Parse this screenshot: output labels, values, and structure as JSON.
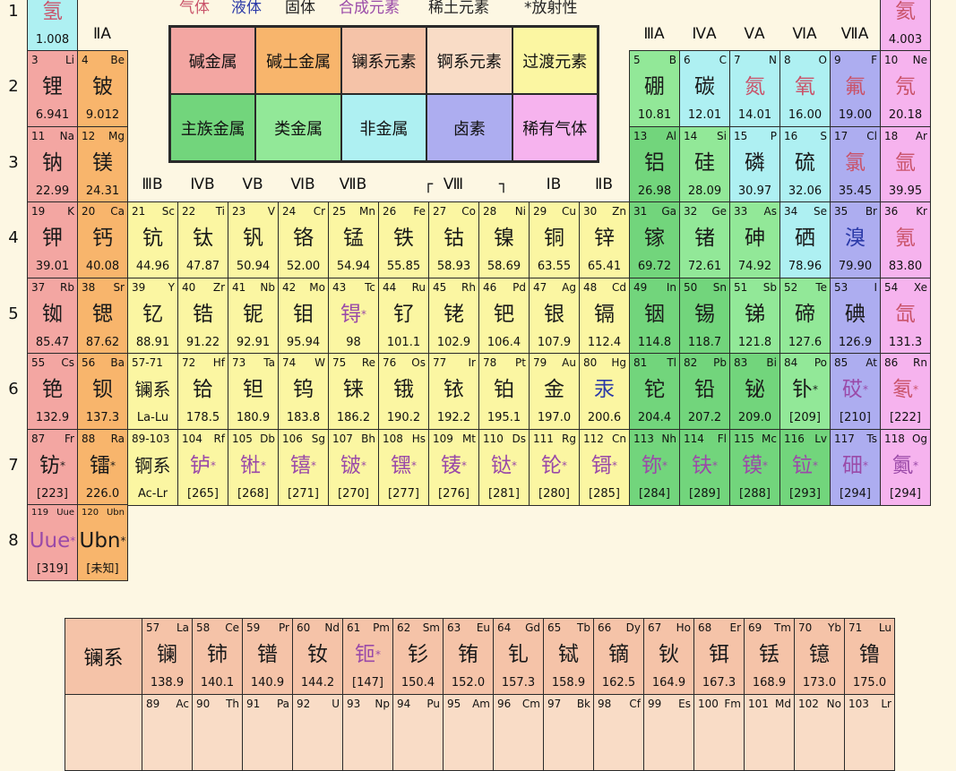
{
  "state_legend": [
    {
      "label": "气体",
      "color": "#c9536a"
    },
    {
      "label": "液体",
      "color": "#2b3aa8"
    },
    {
      "label": "固体",
      "color": "#222222"
    },
    {
      "label": "合成元素",
      "color": "#9a4aa8"
    },
    {
      "label": "稀土元素",
      "color": "#222222"
    },
    {
      "label": "*放射性",
      "color": "#222222"
    }
  ],
  "category_legend": [
    {
      "label": "碱金属",
      "cat": "a"
    },
    {
      "label": "碱土金属",
      "cat": "e"
    },
    {
      "label": "镧系元素",
      "cat": "l"
    },
    {
      "label": "锕系元素",
      "cat": "c"
    },
    {
      "label": "过渡元素",
      "cat": "t"
    },
    {
      "label": "主族金属",
      "cat": "m"
    },
    {
      "label": "类金属",
      "cat": "s"
    },
    {
      "label": "非金属",
      "cat": "n"
    },
    {
      "label": "卤素",
      "cat": "h"
    },
    {
      "label": "稀有气体",
      "cat": "g"
    }
  ],
  "colors": {
    "a": "#f3a6a2",
    "e": "#f8b56c",
    "l": "#f5c3a8",
    "c": "#f9dcc6",
    "t": "#fbf6a2",
    "m": "#72d57c",
    "s": "#92e898",
    "n": "#aef0f2",
    "h": "#adadf0",
    "g": "#f6b3ee"
  },
  "state_colors": {
    "g": "#c9536a",
    "l": "#2b3aa8",
    "s": "#1a1a1a",
    "x": "#9a4aa8"
  },
  "periods": [
    "1",
    "2",
    "3",
    "4",
    "5",
    "6",
    "7",
    "8"
  ],
  "group_headers": {
    "IIA": "ⅡA",
    "IIIA": "ⅢA",
    "IVA": "ⅣA",
    "VA": "ⅤA",
    "VIA": "ⅥA",
    "VIIA": "ⅦA",
    "IIIB": "ⅢB",
    "IVB": "ⅣB",
    "VB": "ⅤB",
    "VIB": "ⅥB",
    "VIIB": "ⅦB",
    "VIII": "Ⅷ",
    "VIII_left": "┌",
    "VIII_right": "┐",
    "IB": "ⅠB",
    "IIB": "ⅡB"
  },
  "elements": [
    {
      "z": 1,
      "num": "",
      "sym": "",
      "name": "氢",
      "mass": "1.008",
      "cat": "n",
      "state": "g"
    },
    {
      "z": 2,
      "num": "",
      "sym": "",
      "name": "氦",
      "mass": "4.003",
      "cat": "g",
      "state": "g"
    },
    {
      "z": 3,
      "num": "3",
      "sym": "Li",
      "name": "锂",
      "mass": "6.941",
      "cat": "a",
      "state": "s"
    },
    {
      "z": 4,
      "num": "4",
      "sym": "Be",
      "name": "铍",
      "mass": "9.012",
      "cat": "e",
      "state": "s"
    },
    {
      "z": 5,
      "num": "5",
      "sym": "B",
      "name": "硼",
      "mass": "10.81",
      "cat": "s",
      "state": "s"
    },
    {
      "z": 6,
      "num": "6",
      "sym": "C",
      "name": "碳",
      "mass": "12.01",
      "cat": "n",
      "state": "s"
    },
    {
      "z": 7,
      "num": "7",
      "sym": "N",
      "name": "氮",
      "mass": "14.01",
      "cat": "n",
      "state": "g"
    },
    {
      "z": 8,
      "num": "8",
      "sym": "O",
      "name": "氧",
      "mass": "16.00",
      "cat": "n",
      "state": "g"
    },
    {
      "z": 9,
      "num": "9",
      "sym": "F",
      "name": "氟",
      "mass": "19.00",
      "cat": "h",
      "state": "g"
    },
    {
      "z": 10,
      "num": "10",
      "sym": "Ne",
      "name": "氖",
      "mass": "20.18",
      "cat": "g",
      "state": "g"
    },
    {
      "z": 11,
      "num": "11",
      "sym": "Na",
      "name": "钠",
      "mass": "22.99",
      "cat": "a",
      "state": "s"
    },
    {
      "z": 12,
      "num": "12",
      "sym": "Mg",
      "name": "镁",
      "mass": "24.31",
      "cat": "e",
      "state": "s"
    },
    {
      "z": 13,
      "num": "13",
      "sym": "Al",
      "name": "铝",
      "mass": "26.98",
      "cat": "m",
      "state": "s"
    },
    {
      "z": 14,
      "num": "14",
      "sym": "Si",
      "name": "硅",
      "mass": "28.09",
      "cat": "s",
      "state": "s"
    },
    {
      "z": 15,
      "num": "15",
      "sym": "P",
      "name": "磷",
      "mass": "30.97",
      "cat": "n",
      "state": "s"
    },
    {
      "z": 16,
      "num": "16",
      "sym": "S",
      "name": "硫",
      "mass": "32.06",
      "cat": "n",
      "state": "s"
    },
    {
      "z": 17,
      "num": "17",
      "sym": "Cl",
      "name": "氯",
      "mass": "35.45",
      "cat": "h",
      "state": "g"
    },
    {
      "z": 18,
      "num": "18",
      "sym": "Ar",
      "name": "氩",
      "mass": "39.95",
      "cat": "g",
      "state": "g"
    },
    {
      "z": 19,
      "num": "19",
      "sym": "K",
      "name": "钾",
      "mass": "39.01",
      "cat": "a",
      "state": "s"
    },
    {
      "z": 20,
      "num": "20",
      "sym": "Ca",
      "name": "钙",
      "mass": "40.08",
      "cat": "e",
      "state": "s"
    },
    {
      "z": 21,
      "num": "21",
      "sym": "Sc",
      "name": "钪",
      "mass": "44.96",
      "cat": "t",
      "state": "s"
    },
    {
      "z": 22,
      "num": "22",
      "sym": "Ti",
      "name": "钛",
      "mass": "47.87",
      "cat": "t",
      "state": "s"
    },
    {
      "z": 23,
      "num": "23",
      "sym": "V",
      "name": "钒",
      "mass": "50.94",
      "cat": "t",
      "state": "s"
    },
    {
      "z": 24,
      "num": "24",
      "sym": "Cr",
      "name": "铬",
      "mass": "52.00",
      "cat": "t",
      "state": "s"
    },
    {
      "z": 25,
      "num": "25",
      "sym": "Mn",
      "name": "锰",
      "mass": "54.94",
      "cat": "t",
      "state": "s"
    },
    {
      "z": 26,
      "num": "26",
      "sym": "Fe",
      "name": "铁",
      "mass": "55.85",
      "cat": "t",
      "state": "s"
    },
    {
      "z": 27,
      "num": "27",
      "sym": "Co",
      "name": "钴",
      "mass": "58.93",
      "cat": "t",
      "state": "s"
    },
    {
      "z": 28,
      "num": "28",
      "sym": "Ni",
      "name": "镍",
      "mass": "58.69",
      "cat": "t",
      "state": "s"
    },
    {
      "z": 29,
      "num": "29",
      "sym": "Cu",
      "name": "铜",
      "mass": "63.55",
      "cat": "t",
      "state": "s"
    },
    {
      "z": 30,
      "num": "30",
      "sym": "Zn",
      "name": "锌",
      "mass": "65.41",
      "cat": "t",
      "state": "s"
    },
    {
      "z": 31,
      "num": "31",
      "sym": "Ga",
      "name": "镓",
      "mass": "69.72",
      "cat": "m",
      "state": "s"
    },
    {
      "z": 32,
      "num": "32",
      "sym": "Ge",
      "name": "锗",
      "mass": "72.61",
      "cat": "s",
      "state": "s"
    },
    {
      "z": 33,
      "num": "33",
      "sym": "As",
      "name": "砷",
      "mass": "74.92",
      "cat": "s",
      "state": "s"
    },
    {
      "z": 34,
      "num": "34",
      "sym": "Se",
      "name": "硒",
      "mass": "78.96",
      "cat": "n",
      "state": "s"
    },
    {
      "z": 35,
      "num": "35",
      "sym": "Br",
      "name": "溴",
      "mass": "79.90",
      "cat": "h",
      "state": "l"
    },
    {
      "z": 36,
      "num": "36",
      "sym": "Kr",
      "name": "氪",
      "mass": "83.80",
      "cat": "g",
      "state": "g"
    },
    {
      "z": 37,
      "num": "37",
      "sym": "Rb",
      "name": "铷",
      "mass": "85.47",
      "cat": "a",
      "state": "s"
    },
    {
      "z": 38,
      "num": "38",
      "sym": "Sr",
      "name": "锶",
      "mass": "87.62",
      "cat": "e",
      "state": "s"
    },
    {
      "z": 39,
      "num": "39",
      "sym": "Y",
      "name": "钇",
      "mass": "88.91",
      "cat": "t",
      "state": "s"
    },
    {
      "z": 40,
      "num": "40",
      "sym": "Zr",
      "name": "锆",
      "mass": "91.22",
      "cat": "t",
      "state": "s"
    },
    {
      "z": 41,
      "num": "41",
      "sym": "Nb",
      "name": "铌",
      "mass": "92.91",
      "cat": "t",
      "state": "s"
    },
    {
      "z": 42,
      "num": "42",
      "sym": "Mo",
      "name": "钼",
      "mass": "95.94",
      "cat": "t",
      "state": "s"
    },
    {
      "z": 43,
      "num": "43",
      "sym": "Tc",
      "name": "锝",
      "mark": "*",
      "mass": "98",
      "cat": "t",
      "state": "x"
    },
    {
      "z": 44,
      "num": "44",
      "sym": "Ru",
      "name": "钌",
      "mass": "101.1",
      "cat": "t",
      "state": "s"
    },
    {
      "z": 45,
      "num": "45",
      "sym": "Rh",
      "name": "铑",
      "mass": "102.9",
      "cat": "t",
      "state": "s"
    },
    {
      "z": 46,
      "num": "46",
      "sym": "Pd",
      "name": "钯",
      "mass": "106.4",
      "cat": "t",
      "state": "s"
    },
    {
      "z": 47,
      "num": "47",
      "sym": "Ag",
      "name": "银",
      "mass": "107.9",
      "cat": "t",
      "state": "s"
    },
    {
      "z": 48,
      "num": "48",
      "sym": "Cd",
      "name": "镉",
      "mass": "112.4",
      "cat": "t",
      "state": "s"
    },
    {
      "z": 49,
      "num": "49",
      "sym": "In",
      "name": "铟",
      "mass": "114.8",
      "cat": "m",
      "state": "s"
    },
    {
      "z": 50,
      "num": "50",
      "sym": "Sn",
      "name": "锡",
      "mass": "118.7",
      "cat": "m",
      "state": "s"
    },
    {
      "z": 51,
      "num": "51",
      "sym": "Sb",
      "name": "锑",
      "mass": "121.8",
      "cat": "s",
      "state": "s"
    },
    {
      "z": 52,
      "num": "52",
      "sym": "Te",
      "name": "碲",
      "mass": "127.6",
      "cat": "s",
      "state": "s"
    },
    {
      "z": 53,
      "num": "53",
      "sym": "I",
      "name": "碘",
      "mass": "126.9",
      "cat": "h",
      "state": "s"
    },
    {
      "z": 54,
      "num": "54",
      "sym": "Xe",
      "name": "氙",
      "mass": "131.3",
      "cat": "g",
      "state": "g"
    },
    {
      "z": 55,
      "num": "55",
      "sym": "Cs",
      "name": "铯",
      "mass": "132.9",
      "cat": "a",
      "state": "s"
    },
    {
      "z": 56,
      "num": "56",
      "sym": "Ba",
      "name": "钡",
      "mass": "137.3",
      "cat": "e",
      "state": "s"
    },
    {
      "z": "57-71",
      "num": "57-71",
      "sym": "",
      "name": "镧系",
      "mass": "La-Lu",
      "cat": "t",
      "state": "s"
    },
    {
      "z": 72,
      "num": "72",
      "sym": "Hf",
      "name": "铪",
      "mass": "178.5",
      "cat": "t",
      "state": "s"
    },
    {
      "z": 73,
      "num": "73",
      "sym": "Ta",
      "name": "钽",
      "mass": "180.9",
      "cat": "t",
      "state": "s"
    },
    {
      "z": 74,
      "num": "74",
      "sym": "W",
      "name": "钨",
      "mass": "183.8",
      "cat": "t",
      "state": "s"
    },
    {
      "z": 75,
      "num": "75",
      "sym": "Re",
      "name": "铼",
      "mass": "186.2",
      "cat": "t",
      "state": "s"
    },
    {
      "z": 76,
      "num": "76",
      "sym": "Os",
      "name": "锇",
      "mass": "190.2",
      "cat": "t",
      "state": "s"
    },
    {
      "z": 77,
      "num": "77",
      "sym": "Ir",
      "name": "铱",
      "mass": "192.2",
      "cat": "t",
      "state": "s"
    },
    {
      "z": 78,
      "num": "78",
      "sym": "Pt",
      "name": "铂",
      "mass": "195.1",
      "cat": "t",
      "state": "s"
    },
    {
      "z": 79,
      "num": "79",
      "sym": "Au",
      "name": "金",
      "mass": "197.0",
      "cat": "t",
      "state": "s"
    },
    {
      "z": 80,
      "num": "80",
      "sym": "Hg",
      "name": "汞",
      "mass": "200.6",
      "cat": "t",
      "state": "l"
    },
    {
      "z": 81,
      "num": "81",
      "sym": "Tl",
      "name": "铊",
      "mass": "204.4",
      "cat": "m",
      "state": "s"
    },
    {
      "z": 82,
      "num": "82",
      "sym": "Pb",
      "name": "铅",
      "mass": "207.2",
      "cat": "m",
      "state": "s"
    },
    {
      "z": 83,
      "num": "83",
      "sym": "Bi",
      "name": "铋",
      "mass": "209.0",
      "cat": "m",
      "state": "s"
    },
    {
      "z": 84,
      "num": "84",
      "sym": "Po",
      "name": "钋",
      "mark": "*",
      "mass": "[209]",
      "cat": "s",
      "state": "s"
    },
    {
      "z": 85,
      "num": "85",
      "sym": "At",
      "name": "砹",
      "mark": "*",
      "mass": "[210]",
      "cat": "h",
      "state": "x"
    },
    {
      "z": 86,
      "num": "86",
      "sym": "Rn",
      "name": "氡",
      "mark": "*",
      "mass": "[222]",
      "cat": "g",
      "state": "g"
    },
    {
      "z": 87,
      "num": "87",
      "sym": "Fr",
      "name": "钫",
      "mark": "*",
      "mass": "[223]",
      "cat": "a",
      "state": "s"
    },
    {
      "z": 88,
      "num": "88",
      "sym": "Ra",
      "name": "镭",
      "mark": "*",
      "mass": "226.0",
      "cat": "e",
      "state": "s"
    },
    {
      "z": "89-103",
      "num": "89-103",
      "sym": "",
      "name": "锕系",
      "mass": "Ac-Lr",
      "cat": "t",
      "state": "s"
    },
    {
      "z": 104,
      "num": "104",
      "sym": "Rf",
      "name": "𬬻",
      "mark": "*",
      "mass": "[265]",
      "cat": "t",
      "state": "x"
    },
    {
      "z": 105,
      "num": "105",
      "sym": "Db",
      "name": "𬭊",
      "mark": "*",
      "mass": "[268]",
      "cat": "t",
      "state": "x"
    },
    {
      "z": 106,
      "num": "106",
      "sym": "Sg",
      "name": "𬭳",
      "mark": "*",
      "mass": "[271]",
      "cat": "t",
      "state": "x"
    },
    {
      "z": 107,
      "num": "107",
      "sym": "Bh",
      "name": "𬭛",
      "mark": "*",
      "mass": "[270]",
      "cat": "t",
      "state": "x"
    },
    {
      "z": 108,
      "num": "108",
      "sym": "Hs",
      "name": "𬭶",
      "mark": "*",
      "mass": "[277]",
      "cat": "t",
      "state": "x"
    },
    {
      "z": 109,
      "num": "109",
      "sym": "Mt",
      "name": "鿏",
      "mark": "*",
      "mass": "[276]",
      "cat": "t",
      "state": "x"
    },
    {
      "z": 110,
      "num": "110",
      "sym": "Ds",
      "name": "𫟼",
      "mark": "*",
      "mass": "[281]",
      "cat": "t",
      "state": "x"
    },
    {
      "z": 111,
      "num": "111",
      "sym": "Rg",
      "name": "𬬭",
      "mark": "*",
      "mass": "[280]",
      "cat": "t",
      "state": "x"
    },
    {
      "z": 112,
      "num": "112",
      "sym": "Cn",
      "name": "鿔",
      "mark": "*",
      "mass": "[285]",
      "cat": "t",
      "state": "x"
    },
    {
      "z": 113,
      "num": "113",
      "sym": "Nh",
      "name": "鿭",
      "mark": "*",
      "mass": "[284]",
      "cat": "m",
      "state": "x"
    },
    {
      "z": 114,
      "num": "114",
      "sym": "Fl",
      "name": "𫓧",
      "mark": "*",
      "mass": "[289]",
      "cat": "m",
      "state": "x"
    },
    {
      "z": 115,
      "num": "115",
      "sym": "Mc",
      "name": "镆",
      "mark": "*",
      "mass": "[288]",
      "cat": "m",
      "state": "x"
    },
    {
      "z": 116,
      "num": "116",
      "sym": "Lv",
      "name": "𫟷",
      "mark": "*",
      "mass": "[293]",
      "cat": "m",
      "state": "x"
    },
    {
      "z": 117,
      "num": "117",
      "sym": "Ts",
      "name": "鿬",
      "mark": "*",
      "mass": "[294]",
      "cat": "h",
      "state": "x"
    },
    {
      "z": 118,
      "num": "118",
      "sym": "Og",
      "name": "鿫",
      "mark": "*",
      "mass": "[294]",
      "cat": "g",
      "state": "x"
    },
    {
      "z": 119,
      "num": "119",
      "sym": "Uue",
      "name": "Uue",
      "mark": "*",
      "mass": "[319]",
      "cat": "a",
      "state": "x"
    },
    {
      "z": 120,
      "num": "120",
      "sym": "Ubn",
      "name": "Ubn",
      "mark": "*",
      "mass": "[未知]",
      "cat": "e",
      "state": "s"
    }
  ],
  "lanthanides": {
    "label": "镧系",
    "items": [
      {
        "num": "57",
        "sym": "La",
        "name": "镧",
        "mass": "138.9",
        "state": "s"
      },
      {
        "num": "58",
        "sym": "Ce",
        "name": "铈",
        "mass": "140.1",
        "state": "s"
      },
      {
        "num": "59",
        "sym": "Pr",
        "name": "镨",
        "mass": "140.9",
        "state": "s"
      },
      {
        "num": "60",
        "sym": "Nd",
        "name": "钕",
        "mass": "144.2",
        "state": "s"
      },
      {
        "num": "61",
        "sym": "Pm",
        "name": "钷",
        "mark": "*",
        "mass": "[147]",
        "state": "x"
      },
      {
        "num": "62",
        "sym": "Sm",
        "name": "钐",
        "mass": "150.4",
        "state": "s"
      },
      {
        "num": "63",
        "sym": "Eu",
        "name": "铕",
        "mass": "152.0",
        "state": "s"
      },
      {
        "num": "64",
        "sym": "Gd",
        "name": "钆",
        "mass": "157.3",
        "state": "s"
      },
      {
        "num": "65",
        "sym": "Tb",
        "name": "铽",
        "mass": "158.9",
        "state": "s"
      },
      {
        "num": "66",
        "sym": "Dy",
        "name": "镝",
        "mass": "162.5",
        "state": "s"
      },
      {
        "num": "67",
        "sym": "Ho",
        "name": "钬",
        "mass": "164.9",
        "state": "s"
      },
      {
        "num": "68",
        "sym": "Er",
        "name": "铒",
        "mass": "167.3",
        "state": "s"
      },
      {
        "num": "69",
        "sym": "Tm",
        "name": "铥",
        "mass": "168.9",
        "state": "s"
      },
      {
        "num": "70",
        "sym": "Yb",
        "name": "镱",
        "mass": "173.0",
        "state": "s"
      },
      {
        "num": "71",
        "sym": "Lu",
        "name": "镥",
        "mass": "175.0",
        "state": "s"
      }
    ]
  },
  "actinides": {
    "items": [
      {
        "num": "89",
        "sym": "Ac"
      },
      {
        "num": "90",
        "sym": "Th"
      },
      {
        "num": "91",
        "sym": "Pa"
      },
      {
        "num": "92",
        "sym": "U"
      },
      {
        "num": "93",
        "sym": "Np"
      },
      {
        "num": "94",
        "sym": "Pu"
      },
      {
        "num": "95",
        "sym": "Am"
      },
      {
        "num": "96",
        "sym": "Cm"
      },
      {
        "num": "97",
        "sym": "Bk"
      },
      {
        "num": "98",
        "sym": "Cf"
      },
      {
        "num": "99",
        "sym": "Es"
      },
      {
        "num": "100",
        "sym": "Fm"
      },
      {
        "num": "101",
        "sym": "Md"
      },
      {
        "num": "102",
        "sym": "No"
      },
      {
        "num": "103",
        "sym": "Lr"
      }
    ]
  }
}
